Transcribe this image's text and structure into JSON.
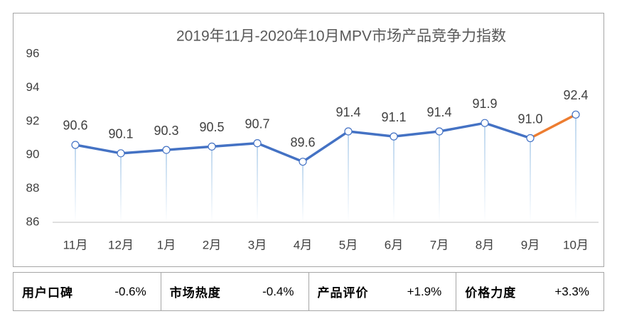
{
  "chart_data": {
    "type": "line",
    "title": "2019年11月-2020年10月MPV市场产品竞争力指数",
    "categories": [
      "11月",
      "12月",
      "1月",
      "2月",
      "3月",
      "4月",
      "5月",
      "6月",
      "7月",
      "8月",
      "9月",
      "10月"
    ],
    "values": [
      90.6,
      90.1,
      90.3,
      90.5,
      90.7,
      89.6,
      91.4,
      91.1,
      91.4,
      91.9,
      91.0,
      92.4
    ],
    "value_labels": [
      "90.6",
      "90.1",
      "90.3",
      "90.5",
      "90.7",
      "89.6",
      "91.4",
      "91.1",
      "91.4",
      "91.9",
      "91.0",
      "92.4"
    ],
    "color": "#4472c4",
    "last_segment_color": "#ed7d31",
    "ylim": [
      86,
      96
    ],
    "yticks": [
      86,
      88,
      90,
      92,
      94,
      96
    ],
    "grid": false
  },
  "summary": [
    {
      "label": "用户口碑",
      "value": "-0.6%"
    },
    {
      "label": "市场热度",
      "value": "-0.4%"
    },
    {
      "label": "产品评价",
      "value": "+1.9%"
    },
    {
      "label": "价格力度",
      "value": "+3.3%"
    }
  ]
}
